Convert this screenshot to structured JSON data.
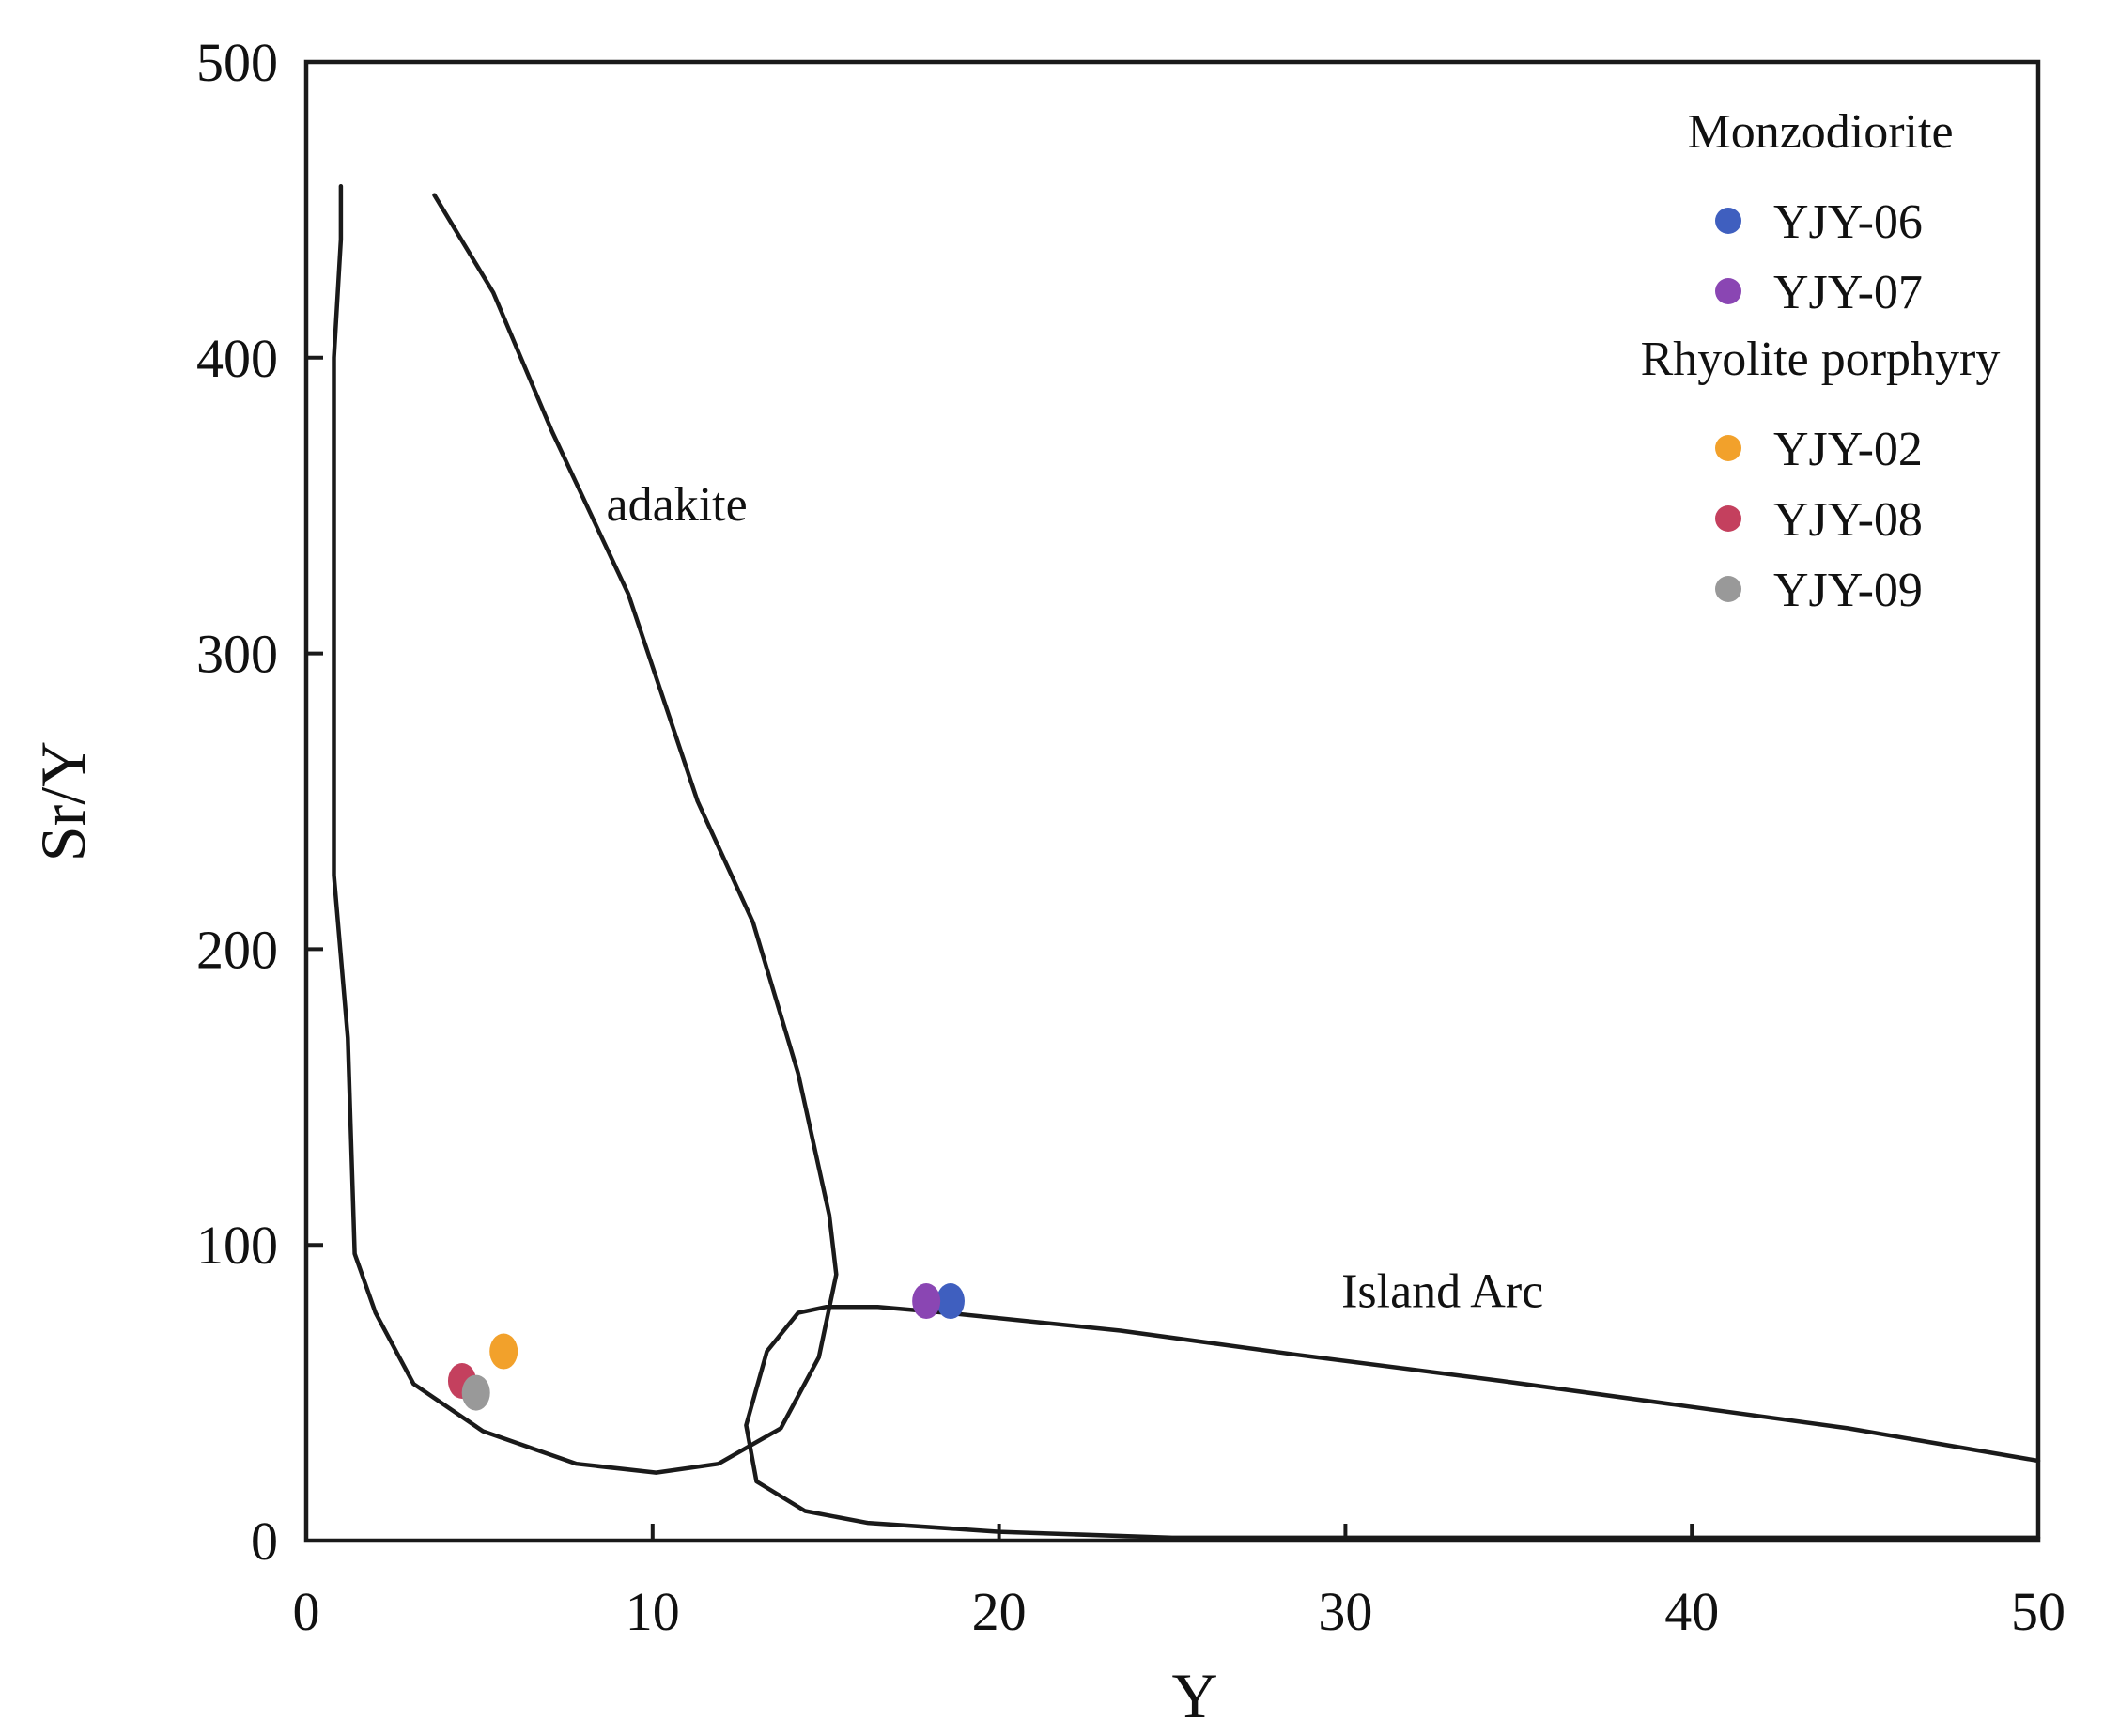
{
  "chart_data": {
    "type": "scatter",
    "title": "",
    "xlabel": "Y",
    "ylabel": "Sr/Y",
    "xlim": [
      0,
      50
    ],
    "ylim": [
      0,
      500
    ],
    "xticks": [
      0,
      10,
      20,
      30,
      40,
      50
    ],
    "yticks": [
      0,
      100,
      200,
      300,
      400,
      500
    ],
    "grid": false,
    "legend_position": "top-right",
    "legend_groups": [
      {
        "title": "Monzodiorite",
        "entries": [
          "YJY-06",
          "YJY-07"
        ]
      },
      {
        "title": "Rhyolite porphyry",
        "entries": [
          "YJY-02",
          "YJY-08",
          "YJY-09"
        ]
      }
    ],
    "series": [
      {
        "name": "YJY-06",
        "group": "Monzodiorite",
        "color": "#3f5fbf",
        "points": [
          {
            "x": 18.6,
            "y": 81
          }
        ]
      },
      {
        "name": "YJY-07",
        "group": "Monzodiorite",
        "color": "#8a46b3",
        "points": [
          {
            "x": 17.9,
            "y": 81
          }
        ]
      },
      {
        "name": "YJY-02",
        "group": "Rhyolite porphyry",
        "color": "#f2a12b",
        "points": [
          {
            "x": 5.7,
            "y": 64
          }
        ]
      },
      {
        "name": "YJY-08",
        "group": "Rhyolite porphyry",
        "color": "#c4405e",
        "points": [
          {
            "x": 4.5,
            "y": 54
          }
        ]
      },
      {
        "name": "YJY-09",
        "group": "Rhyolite porphyry",
        "color": "#999999",
        "points": [
          {
            "x": 4.9,
            "y": 50
          }
        ]
      }
    ],
    "fields": [
      {
        "name": "adakite",
        "label_position": {
          "x": 10.7,
          "y": 345
        },
        "outline": [
          [
            1.0,
            458
          ],
          [
            1.0,
            440
          ],
          [
            0.8,
            400
          ],
          [
            0.8,
            300
          ],
          [
            0.8,
            225
          ],
          [
            1.2,
            170
          ],
          [
            1.4,
            97
          ],
          [
            2.0,
            77
          ],
          [
            3.1,
            53
          ],
          [
            5.1,
            37
          ],
          [
            7.8,
            26
          ],
          [
            10.1,
            23
          ],
          [
            11.9,
            26
          ],
          [
            13.7,
            38
          ],
          [
            14.8,
            62
          ],
          [
            15.3,
            90
          ],
          [
            15.1,
            110
          ],
          [
            14.2,
            158
          ],
          [
            12.9,
            209
          ],
          [
            11.3,
            250
          ],
          [
            9.3,
            320
          ],
          [
            7.1,
            375
          ],
          [
            5.4,
            422
          ],
          [
            3.7,
            455
          ]
        ]
      },
      {
        "name": "Island Arc",
        "label_position": {
          "x": 32.8,
          "y": 79
        },
        "outline": [
          [
            50.0,
            27
          ],
          [
            44.5,
            38
          ],
          [
            39.5,
            46
          ],
          [
            34.5,
            54
          ],
          [
            28.5,
            63
          ],
          [
            23.5,
            71
          ],
          [
            18.5,
            77
          ],
          [
            16.5,
            79
          ],
          [
            15.0,
            79
          ],
          [
            14.2,
            77
          ],
          [
            13.3,
            64
          ],
          [
            12.7,
            39
          ],
          [
            13.0,
            20
          ],
          [
            14.4,
            10
          ],
          [
            16.2,
            6
          ],
          [
            20.0,
            3
          ],
          [
            25.0,
            1
          ],
          [
            50.0,
            1
          ]
        ]
      }
    ]
  }
}
